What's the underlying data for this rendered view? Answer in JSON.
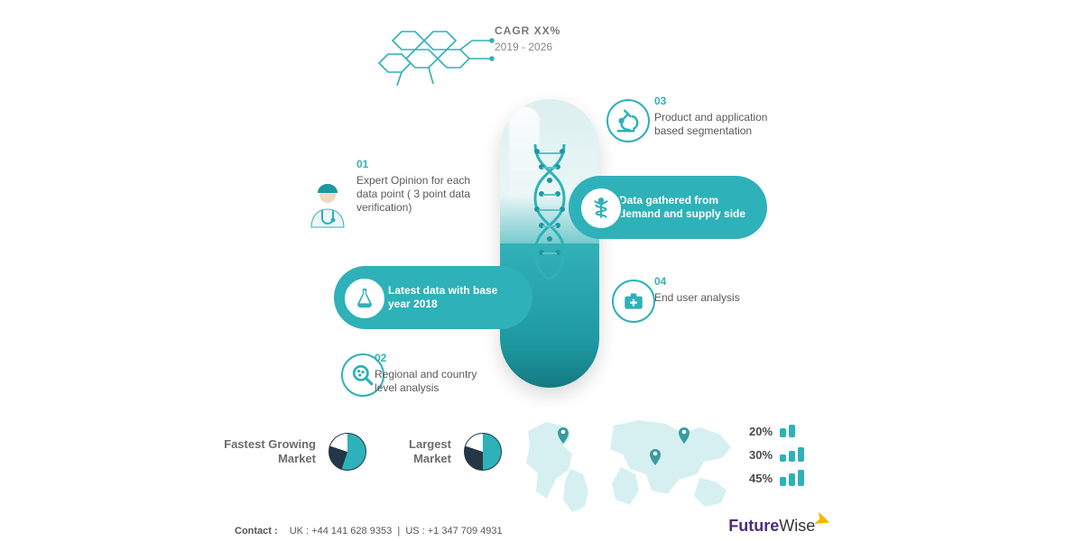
{
  "colors": {
    "teal": "#2eb1b8",
    "tealDark": "#188990",
    "grayText": "#5a5a5a",
    "grayLabel": "#6c6c6c",
    "pieDark": "#243746",
    "brandPurple": "#4a2e7d",
    "brandYellow": "#f7b500",
    "bg": "#ffffff"
  },
  "cagr": {
    "line1": "CAGR XX%",
    "line2": "2019 - 2026"
  },
  "points": {
    "p01": {
      "num": "01",
      "text": "Expert Opinion for each data point ( 3 point data verification)"
    },
    "p02": {
      "num": "02",
      "text": "Regional and country level analysis"
    },
    "p03": {
      "num": "03",
      "text": "Product and application based segmentation"
    },
    "p04": {
      "num": "04",
      "text": "End user analysis"
    }
  },
  "pills": {
    "left": "Latest data with base year 2018",
    "right": "Data gathered from demand and supply side"
  },
  "bottom": {
    "fastest": "Fastest Growing Market",
    "largest": "Largest Market",
    "fastest_pie": {
      "slices": [
        55,
        25,
        20
      ],
      "colors": [
        "#2eb1b8",
        "#243746",
        "#ffffff"
      ],
      "border": "#243746"
    },
    "largest_pie": {
      "slices": [
        50,
        30,
        20
      ],
      "colors": [
        "#2eb1b8",
        "#243746",
        "#ffffff"
      ],
      "border": "#243746"
    }
  },
  "percents": [
    {
      "label": "20%",
      "bars": 2,
      "heights": [
        10,
        14
      ]
    },
    {
      "label": "30%",
      "bars": 3,
      "heights": [
        8,
        12,
        16
      ]
    },
    {
      "label": "45%",
      "bars": 3,
      "heights": [
        10,
        14,
        18
      ]
    }
  ],
  "contact": {
    "label": "Contact :",
    "uk": "UK : +44 141 628 9353",
    "sep": "|",
    "us": "US : +1 347 709 4931"
  },
  "brand": {
    "w1": "Future",
    "w2": "Wise"
  },
  "typography": {
    "body_pt": 12,
    "label_pt": 13,
    "brand_pt": 18
  }
}
